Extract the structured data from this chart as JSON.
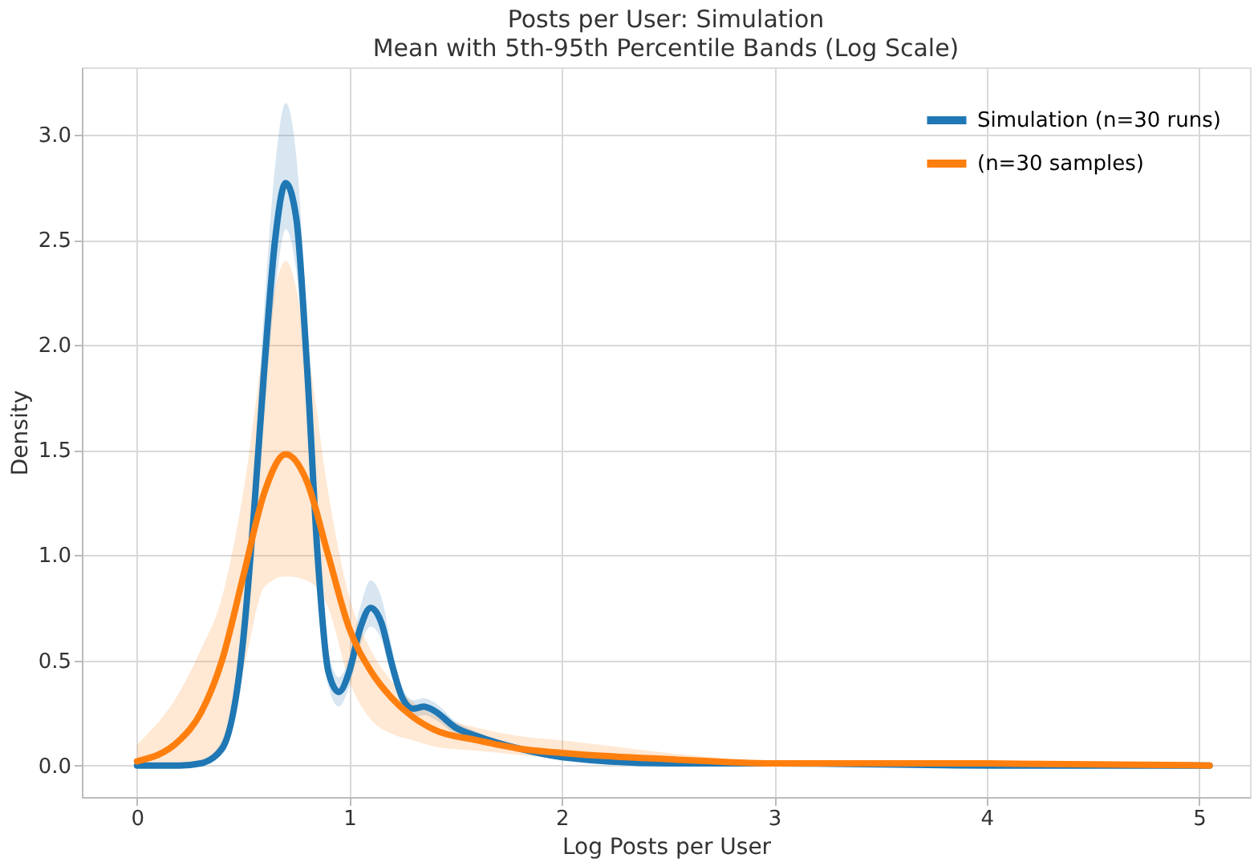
{
  "chart_data": {
    "type": "line",
    "title": "Posts per User: Simulation",
    "subtitle": "Mean with 5th-95th Percentile Bands (Log Scale)",
    "xlabel": "Log Posts per User",
    "ylabel": "Density",
    "xlim": [
      -0.26,
      5.24
    ],
    "ylim": [
      -0.15,
      3.32
    ],
    "xticks": [
      0,
      1,
      2,
      3,
      4,
      5
    ],
    "yticks": [
      {
        "value": 0,
        "label": "0.0"
      },
      0.5,
      {
        "value": 1,
        "label": "1.0"
      },
      1.5,
      {
        "value": 2,
        "label": "2.0"
      },
      2.5,
      {
        "value": 3,
        "label": "3.0"
      }
    ],
    "grid": true,
    "legend": "top right",
    "line_style": "solid",
    "marker": "none",
    "series": [
      {
        "name": "Simulation (n=30 runs)",
        "color": "#1f77b4",
        "x": [
          0,
          0.2,
          0.3,
          0.4,
          0.5,
          0.55,
          0.6,
          0.65,
          0.7,
          0.75,
          0.8,
          0.85,
          0.9,
          0.95,
          1.0,
          1.05,
          1.1,
          1.15,
          1.2,
          1.25,
          1.3,
          1.35,
          1.4,
          1.5,
          1.6,
          1.8,
          2.0,
          2.5,
          3.0,
          4.0,
          5.05
        ],
        "values": [
          0,
          0,
          0.01,
          0.08,
          0.6,
          1.2,
          1.9,
          2.5,
          2.77,
          2.6,
          1.9,
          1.0,
          0.45,
          0.35,
          0.45,
          0.65,
          0.75,
          0.68,
          0.48,
          0.32,
          0.27,
          0.28,
          0.26,
          0.18,
          0.14,
          0.08,
          0.04,
          0.01,
          0.01,
          0,
          0
        ],
        "lower": [
          0,
          0,
          0.005,
          0.05,
          0.5,
          1.05,
          1.7,
          2.25,
          2.55,
          2.35,
          1.7,
          0.85,
          0.38,
          0.28,
          0.38,
          0.57,
          0.66,
          0.6,
          0.42,
          0.28,
          0.23,
          0.24,
          0.22,
          0.15,
          0.12,
          0.07,
          0.03,
          0.005,
          0,
          0,
          0
        ],
        "upper": [
          0,
          0.005,
          0.02,
          0.12,
          0.7,
          1.4,
          2.2,
          2.85,
          3.15,
          2.9,
          2.1,
          1.15,
          0.55,
          0.42,
          0.52,
          0.75,
          0.88,
          0.8,
          0.56,
          0.37,
          0.31,
          0.32,
          0.3,
          0.21,
          0.16,
          0.09,
          0.05,
          0.015,
          0.01,
          0.005,
          0.005
        ]
      },
      {
        "name": "(n=30 samples)",
        "color": "#ff7f0e",
        "x": [
          0,
          0.2,
          0.3,
          0.4,
          0.5,
          0.6,
          0.7,
          0.8,
          0.9,
          1.0,
          1.1,
          1.2,
          1.3,
          1.4,
          1.6,
          1.8,
          2.0,
          2.5,
          3.0,
          4.0,
          5.05
        ],
        "values": [
          0.02,
          0.12,
          0.25,
          0.5,
          0.9,
          1.3,
          1.48,
          1.35,
          1.0,
          0.65,
          0.45,
          0.32,
          0.23,
          0.17,
          0.12,
          0.08,
          0.06,
          0.03,
          0.01,
          0.01,
          0
        ],
        "lower": [
          0,
          0.01,
          0.02,
          0.08,
          0.45,
          0.85,
          0.9,
          0.88,
          0.75,
          0.4,
          0.22,
          0.15,
          0.12,
          0.09,
          0.07,
          0.05,
          0.03,
          0.01,
          0,
          0,
          0
        ],
        "upper": [
          0.1,
          0.35,
          0.55,
          0.8,
          1.3,
          2.0,
          2.4,
          2.0,
          1.3,
          0.8,
          0.55,
          0.4,
          0.3,
          0.24,
          0.18,
          0.14,
          0.12,
          0.06,
          0.02,
          0.01,
          0.005
        ]
      }
    ]
  }
}
